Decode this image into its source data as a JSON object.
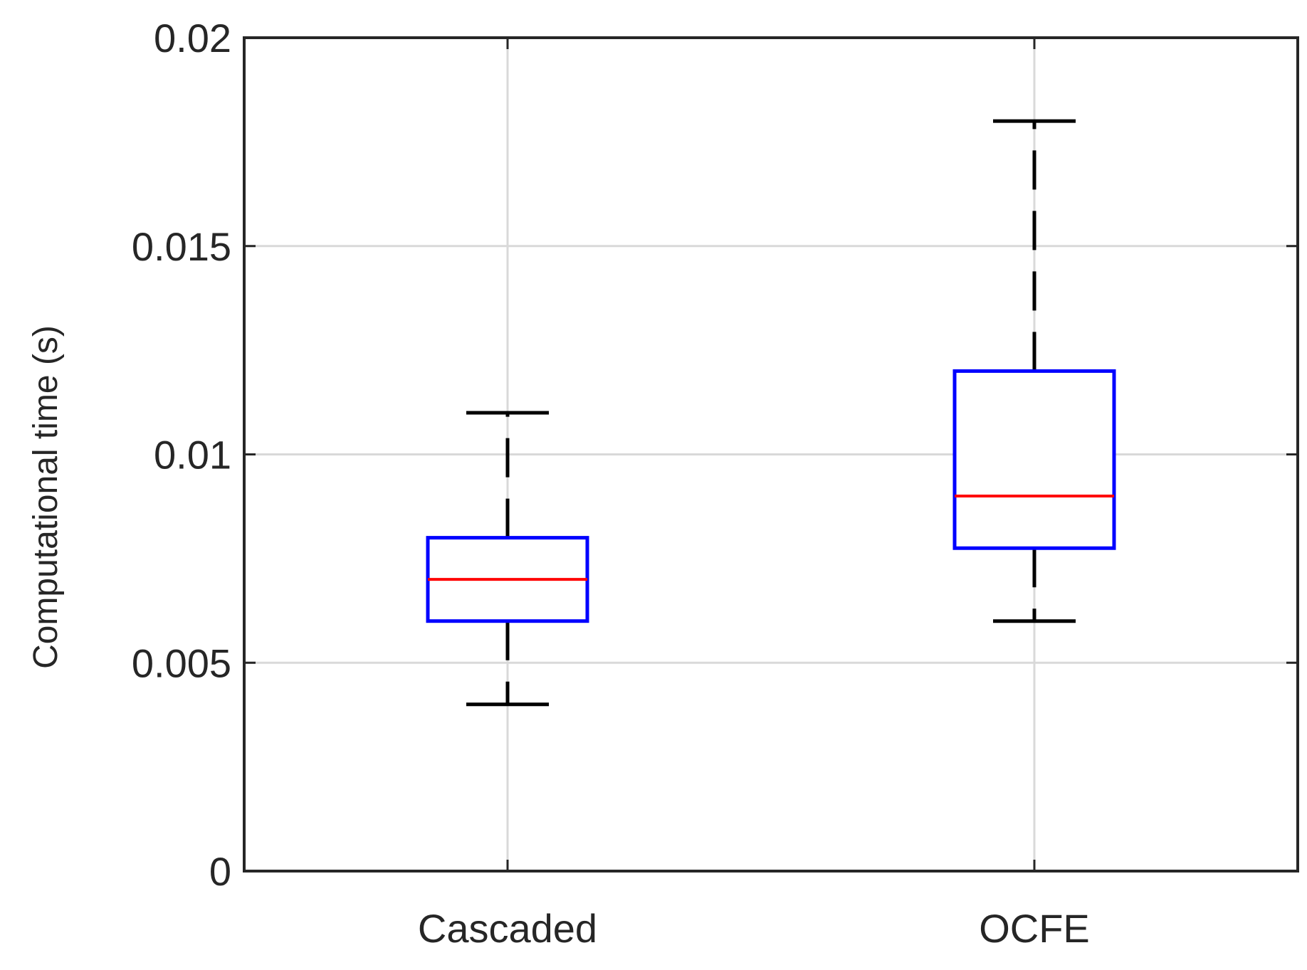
{
  "chart_data": {
    "type": "box",
    "title": "",
    "xlabel": "",
    "ylabel": "Computational time (s)",
    "ylim": [
      0,
      0.02
    ],
    "yticks": [
      0,
      0.005,
      0.01,
      0.015,
      0.02
    ],
    "ytick_labels": [
      "0",
      "0.005",
      "0.01",
      "0.015",
      "0.02"
    ],
    "grid": true,
    "categories": [
      "Cascaded",
      "OCFE"
    ],
    "boxes": [
      {
        "name": "Cascaded",
        "whisker_low": 0.004,
        "q1": 0.006,
        "median": 0.007,
        "q3": 0.008,
        "whisker_high": 0.011
      },
      {
        "name": "OCFE",
        "whisker_low": 0.006,
        "q1": 0.00775,
        "median": 0.009,
        "q3": 0.012,
        "whisker_high": 0.018
      }
    ],
    "colors": {
      "box": "#0000ff",
      "median": "#ff0000",
      "whisker": "#000000",
      "grid": "#d9d9d9",
      "axis": "#262626"
    }
  }
}
